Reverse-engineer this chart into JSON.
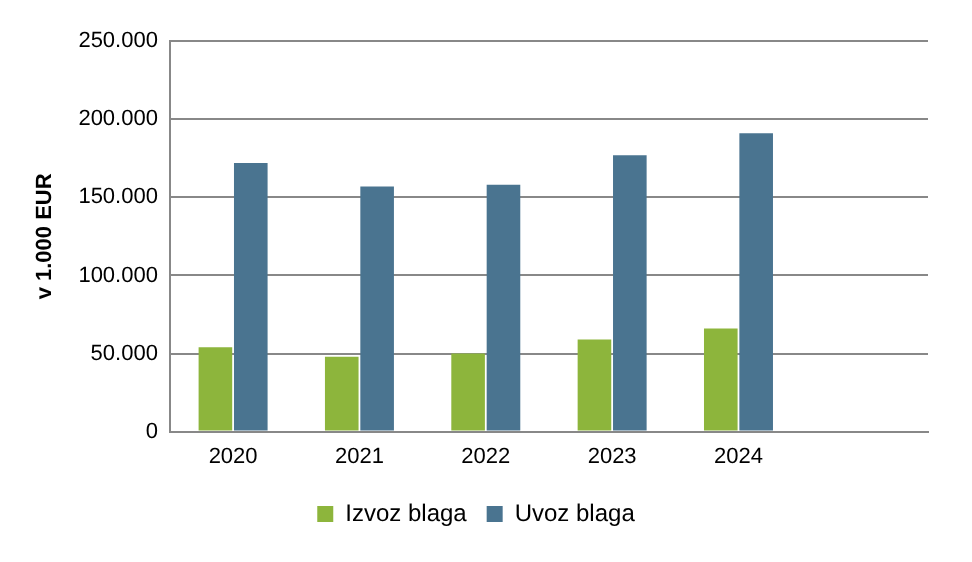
{
  "chart_data": {
    "type": "bar",
    "ylabel": "v 1.000 EUR",
    "categories": [
      "2020",
      "2021",
      "2022",
      "2023",
      "2024",
      null
    ],
    "series": [
      {
        "name": "Izvoz blaga",
        "color": "#8db53c",
        "values": [
          54000,
          48000,
          50000,
          59000,
          66000,
          null
        ]
      },
      {
        "name": "Uvoz blaga",
        "color": "#4a7490",
        "values": [
          172000,
          157000,
          158000,
          177000,
          191000,
          null
        ]
      }
    ],
    "ylim": [
      0,
      250000
    ],
    "yticks": [
      {
        "value": 0,
        "label": "0"
      },
      {
        "value": 50000,
        "label": "50.000"
      },
      {
        "value": 100000,
        "label": "100.000"
      },
      {
        "value": 150000,
        "label": "150.000"
      },
      {
        "value": 200000,
        "label": "200.000"
      },
      {
        "value": 250000,
        "label": "250.000"
      }
    ],
    "grid": "y",
    "legend": "bottom"
  }
}
